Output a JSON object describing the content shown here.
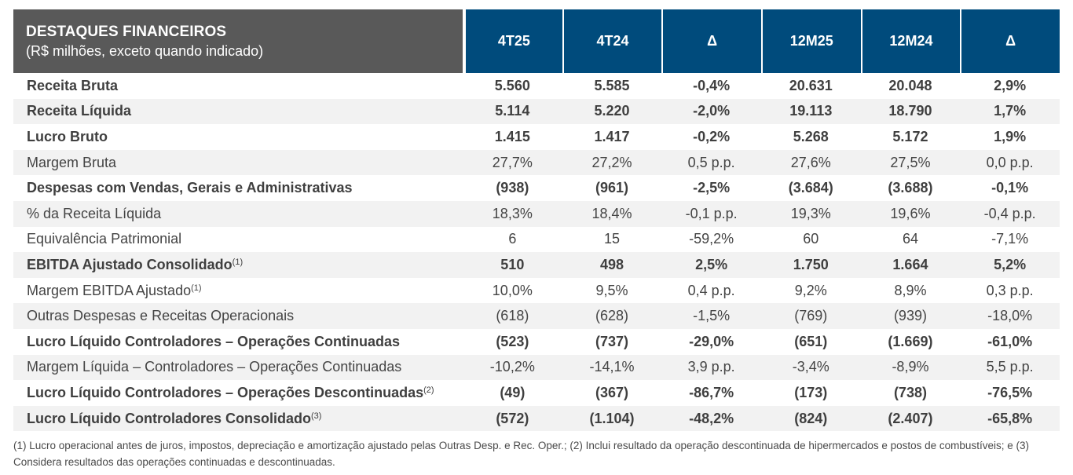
{
  "header": {
    "title": "DESTAQUES FINANCEIROS",
    "subtitle": "(R$ milhões, exceto quando indicado)",
    "columns": [
      "4T25",
      "4T24",
      "Δ",
      "12M25",
      "12M24",
      "Δ"
    ]
  },
  "rows": [
    {
      "label": "Receita Bruta",
      "sup": "",
      "bold": true,
      "values": [
        "5.560",
        "5.585",
        "-0,4%",
        "20.631",
        "20.048",
        "2,9%"
      ]
    },
    {
      "label": "Receita Líquida",
      "sup": "",
      "bold": true,
      "values": [
        "5.114",
        "5.220",
        "-2,0%",
        "19.113",
        "18.790",
        "1,7%"
      ]
    },
    {
      "label": "Lucro Bruto",
      "sup": "",
      "bold": true,
      "values": [
        "1.415",
        "1.417",
        "-0,2%",
        "5.268",
        "5.172",
        "1,9%"
      ]
    },
    {
      "label": "Margem Bruta",
      "sup": "",
      "bold": false,
      "values": [
        "27,7%",
        "27,2%",
        "0,5 p.p.",
        "27,6%",
        "27,5%",
        "0,0 p.p."
      ]
    },
    {
      "label": "Despesas com Vendas, Gerais e Administrativas",
      "sup": "",
      "bold": true,
      "values": [
        "(938)",
        "(961)",
        "-2,5%",
        "(3.684)",
        "(3.688)",
        "-0,1%"
      ]
    },
    {
      "label": "% da Receita Líquida",
      "sup": "",
      "bold": false,
      "values": [
        "18,3%",
        "18,4%",
        "-0,1 p.p.",
        "19,3%",
        "19,6%",
        "-0,4 p.p."
      ]
    },
    {
      "label": "Equivalência Patrimonial",
      "sup": "",
      "bold": false,
      "values": [
        "6",
        "15",
        "-59,2%",
        "60",
        "64",
        "-7,1%"
      ]
    },
    {
      "label": "EBITDA Ajustado Consolidado",
      "sup": "(1)",
      "bold": true,
      "values": [
        "510",
        "498",
        "2,5%",
        "1.750",
        "1.664",
        "5,2%"
      ]
    },
    {
      "label": "Margem EBITDA Ajustado",
      "sup": "(1)",
      "bold": false,
      "values": [
        "10,0%",
        "9,5%",
        "0,4 p.p.",
        "9,2%",
        "8,9%",
        "0,3 p.p."
      ]
    },
    {
      "label": "Outras Despesas e Receitas Operacionais",
      "sup": "",
      "bold": false,
      "values": [
        "(618)",
        "(628)",
        "-1,5%",
        "(769)",
        "(939)",
        "-18,0%"
      ]
    },
    {
      "label": "Lucro Líquido Controladores – Operações Continuadas",
      "sup": "",
      "bold": true,
      "values": [
        "(523)",
        "(737)",
        "-29,0%",
        "(651)",
        "(1.669)",
        "-61,0%"
      ]
    },
    {
      "label": "Margem Líquida – Controladores – Operações Continuadas",
      "sup": "",
      "bold": false,
      "values": [
        "-10,2%",
        "-14,1%",
        "3,9 p.p.",
        "-3,4%",
        "-8,9%",
        "5,5 p.p."
      ]
    },
    {
      "label": "Lucro Líquido Controladores – Operações Descontinuadas",
      "sup": "(2)",
      "bold": true,
      "values": [
        "(49)",
        "(367)",
        "-86,7%",
        "(173)",
        "(738)",
        "-76,5%"
      ]
    },
    {
      "label": "Lucro Líquido Controladores Consolidado",
      "sup": "(3)",
      "bold": true,
      "values": [
        "(572)",
        "(1.104)",
        "-48,2%",
        "(824)",
        "(2.407)",
        "-65,8%"
      ]
    }
  ],
  "footnote": "(1) Lucro operacional antes de juros, impostos, depreciação e amortização ajustado pelas Outras Desp. e Rec. Oper.; (2) Inclui resultado da operação descontinuada de hipermercados e postos de combustíveis; e (3) Considera resultados das operações continuadas e descontinuadas."
}
